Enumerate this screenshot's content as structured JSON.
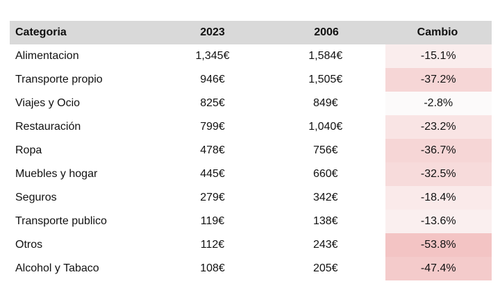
{
  "table": {
    "header": [
      "Categoria",
      "2023",
      "2006",
      "Cambio"
    ],
    "rows": [
      [
        "Alimentacion",
        "1,345€",
        "1,584€",
        "-15.1%"
      ],
      [
        "Transporte propio",
        "946€",
        "1,505€",
        "-37.2%"
      ],
      [
        "Viajes y Ocio",
        "825€",
        "849€",
        "-2.8%"
      ],
      [
        "Restauración",
        "799€",
        "1,040€",
        "-23.2%"
      ],
      [
        "Ropa",
        "478€",
        "756€",
        "-36.7%"
      ],
      [
        "Muebles y hogar",
        "445€",
        "660€",
        "-32.5%"
      ],
      [
        "Seguros",
        "279€",
        "342€",
        "-18.4%"
      ],
      [
        "Transporte publico",
        "119€",
        "138€",
        "-13.6%"
      ],
      [
        "Otros",
        "112€",
        "243€",
        "-53.8%"
      ],
      [
        "Alcohol y Tabaco",
        "108€",
        "205€",
        "-47.4%"
      ]
    ]
  }
}
